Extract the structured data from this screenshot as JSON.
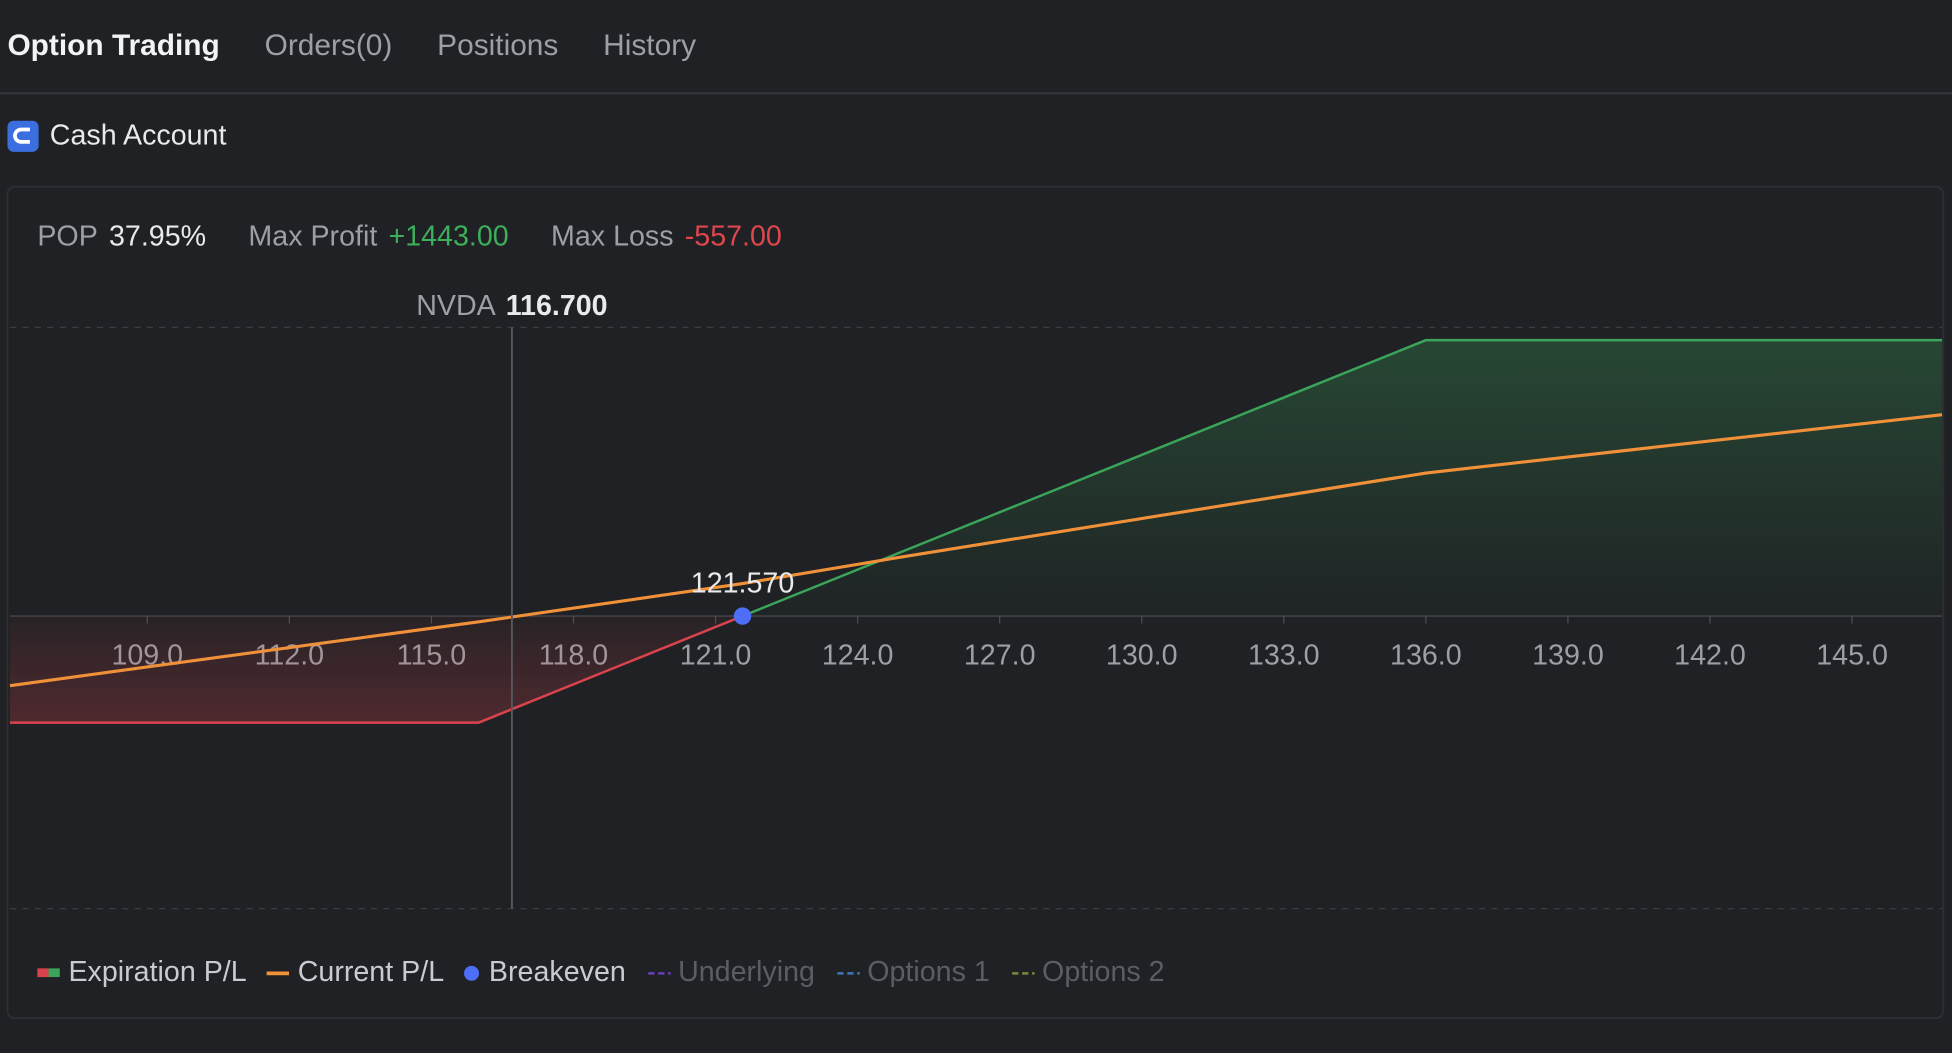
{
  "tabs": [
    "Option Trading",
    "Orders(0)",
    "Positions",
    "History"
  ],
  "account": "Cash Account",
  "stats": [
    {
      "label": "POP",
      "value": "37.95%"
    },
    {
      "label": "Max Profit",
      "value": "+1443.00"
    },
    {
      "label": "Max Loss",
      "value": "-557.00"
    }
  ],
  "chart_data": {
    "type": "line",
    "xlim": [
      106.1,
      146.9
    ],
    "ylim": [
      -1530,
      1510
    ],
    "xticks": [
      {
        "value": 109,
        "label": "109.0"
      },
      {
        "value": 112,
        "label": "112.0"
      },
      {
        "value": 115,
        "label": "115.0"
      },
      {
        "value": 118,
        "label": "118.0"
      },
      {
        "value": 121,
        "label": "121.0"
      },
      {
        "value": 124,
        "label": "124.0"
      },
      {
        "value": 127,
        "label": "127.0"
      },
      {
        "value": 130,
        "label": "130.0"
      },
      {
        "value": 133,
        "label": "133.0"
      },
      {
        "value": 136,
        "label": "136.0"
      },
      {
        "value": 139,
        "label": "139.0"
      },
      {
        "value": 142,
        "label": "142.0"
      },
      {
        "value": 145,
        "label": "145.0"
      }
    ],
    "underlying": {
      "name": "NVDA",
      "value": 116.7,
      "label": "116.700"
    },
    "breakeven": {
      "value": 121.57,
      "label": "121.570"
    },
    "series": [
      {
        "name": "Expiration P/L",
        "color": "#3aa55a",
        "loss_color": "#d9434d",
        "x": [
          106.1,
          116,
          121.57,
          136,
          146.9
        ],
        "values": [
          -557,
          -557,
          0,
          1443,
          1443
        ]
      },
      {
        "name": "Current P/L",
        "color": "#f0913a",
        "x": [
          106.1,
          116,
          121.57,
          125,
          136,
          146.9
        ],
        "values": [
          -364,
          -30,
          170,
          312,
          748,
          1053
        ]
      }
    ],
    "legend_extra": [
      {
        "name": "Breakeven",
        "color": "#4f6ef7",
        "active": true
      },
      {
        "name": "Underlying",
        "color": "#6a3fc0",
        "active": false
      },
      {
        "name": "Options 1",
        "color": "#3f78b8",
        "active": false
      },
      {
        "name": "Options 2",
        "color": "#7a8a3a",
        "active": false
      }
    ]
  }
}
